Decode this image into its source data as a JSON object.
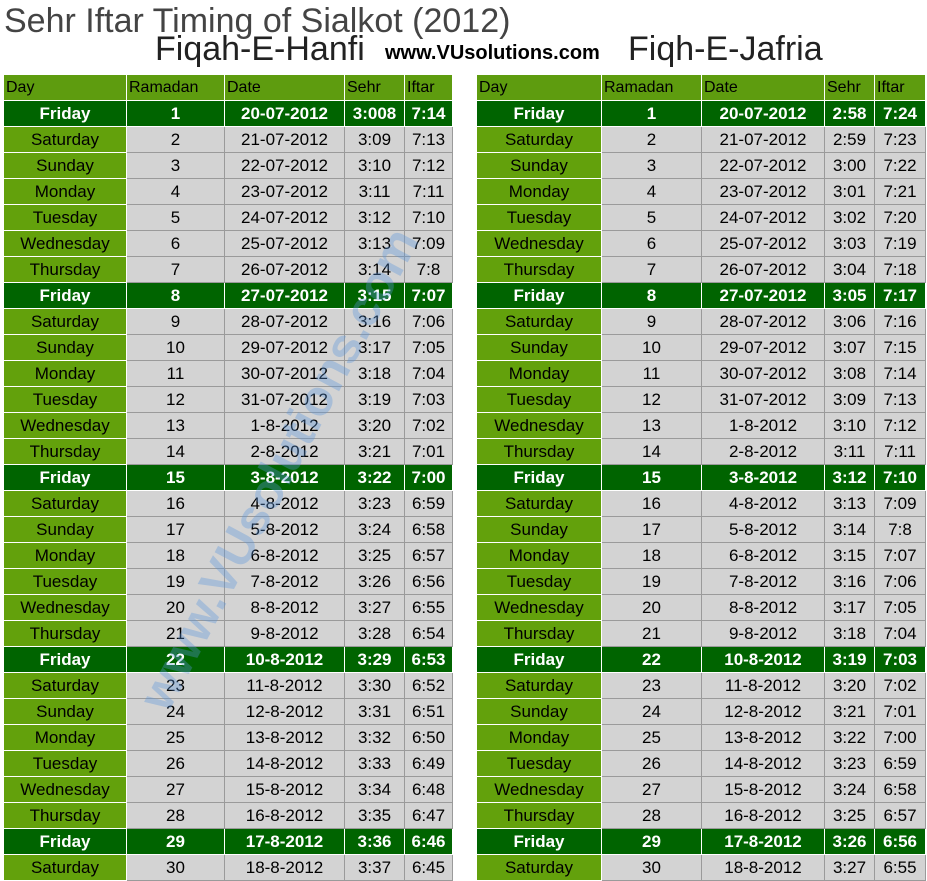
{
  "header": {
    "title": "Sehr Iftar Timing of Sialkot (2012)",
    "left_subtitle": "Fiqah-E-Hanfi",
    "website": "www.VUsolutions.com",
    "right_subtitle": "Fiqh-E-Jafria"
  },
  "watermark": "www.VUsolutions.com",
  "tables": [
    {
      "columns": [
        "Day",
        "Ramadan",
        "Date",
        "Sehr",
        "Iftar"
      ],
      "rows": [
        [
          "Friday",
          1,
          "20-07-2012",
          "3:008",
          "7:14"
        ],
        [
          "Saturday",
          2,
          "21-07-2012",
          "3:09",
          "7:13"
        ],
        [
          "Sunday",
          3,
          "22-07-2012",
          "3:10",
          "7:12"
        ],
        [
          "Monday",
          4,
          "23-07-2012",
          "3:11",
          "7:11"
        ],
        [
          "Tuesday",
          5,
          "24-07-2012",
          "3:12",
          "7:10"
        ],
        [
          "Wednesday",
          6,
          "25-07-2012",
          "3:13",
          "7:09"
        ],
        [
          "Thursday",
          7,
          "26-07-2012",
          "3:14",
          "7:8"
        ],
        [
          "Friday",
          8,
          "27-07-2012",
          "3:15",
          "7:07"
        ],
        [
          "Saturday",
          9,
          "28-07-2012",
          "3:16",
          "7:06"
        ],
        [
          "Sunday",
          10,
          "29-07-2012",
          "3:17",
          "7:05"
        ],
        [
          "Monday",
          11,
          "30-07-2012",
          "3:18",
          "7:04"
        ],
        [
          "Tuesday",
          12,
          "31-07-2012",
          "3:19",
          "7:03"
        ],
        [
          "Wednesday",
          13,
          "1-8-2012",
          "3:20",
          "7:02"
        ],
        [
          "Thursday",
          14,
          "2-8-2012",
          "3:21",
          "7:01"
        ],
        [
          "Friday",
          15,
          "3-8-2012",
          "3:22",
          "7:00"
        ],
        [
          "Saturday",
          16,
          "4-8-2012",
          "3:23",
          "6:59"
        ],
        [
          "Sunday",
          17,
          "5-8-2012",
          "3:24",
          "6:58"
        ],
        [
          "Monday",
          18,
          "6-8-2012",
          "3:25",
          "6:57"
        ],
        [
          "Tuesday",
          19,
          "7-8-2012",
          "3:26",
          "6:56"
        ],
        [
          "Wednesday",
          20,
          "8-8-2012",
          "3:27",
          "6:55"
        ],
        [
          "Thursday",
          21,
          "9-8-2012",
          "3:28",
          "6:54"
        ],
        [
          "Friday",
          22,
          "10-8-2012",
          "3:29",
          "6:53"
        ],
        [
          "Saturday",
          23,
          "11-8-2012",
          "3:30",
          "6:52"
        ],
        [
          "Sunday",
          24,
          "12-8-2012",
          "3:31",
          "6:51"
        ],
        [
          "Monday",
          25,
          "13-8-2012",
          "3:32",
          "6:50"
        ],
        [
          "Tuesday",
          26,
          "14-8-2012",
          "3:33",
          "6:49"
        ],
        [
          "Wednesday",
          27,
          "15-8-2012",
          "3:34",
          "6:48"
        ],
        [
          "Thursday",
          28,
          "16-8-2012",
          "3:35",
          "6:47"
        ],
        [
          "Friday",
          29,
          "17-8-2012",
          "3:36",
          "6:46"
        ],
        [
          "Saturday",
          30,
          "18-8-2012",
          "3:37",
          "6:45"
        ]
      ]
    },
    {
      "columns": [
        "Day",
        "Ramadan",
        "Date",
        "Sehr",
        "Iftar"
      ],
      "rows": [
        [
          "Friday",
          1,
          "20-07-2012",
          "2:58",
          "7:24"
        ],
        [
          "Saturday",
          2,
          "21-07-2012",
          "2:59",
          "7:23"
        ],
        [
          "Sunday",
          3,
          "22-07-2012",
          "3:00",
          "7:22"
        ],
        [
          "Monday",
          4,
          "23-07-2012",
          "3:01",
          "7:21"
        ],
        [
          "Tuesday",
          5,
          "24-07-2012",
          "3:02",
          "7:20"
        ],
        [
          "Wednesday",
          6,
          "25-07-2012",
          "3:03",
          "7:19"
        ],
        [
          "Thursday",
          7,
          "26-07-2012",
          "3:04",
          "7:18"
        ],
        [
          "Friday",
          8,
          "27-07-2012",
          "3:05",
          "7:17"
        ],
        [
          "Saturday",
          9,
          "28-07-2012",
          "3:06",
          "7:16"
        ],
        [
          "Sunday",
          10,
          "29-07-2012",
          "3:07",
          "7:15"
        ],
        [
          "Monday",
          11,
          "30-07-2012",
          "3:08",
          "7:14"
        ],
        [
          "Tuesday",
          12,
          "31-07-2012",
          "3:09",
          "7:13"
        ],
        [
          "Wednesday",
          13,
          "1-8-2012",
          "3:10",
          "7:12"
        ],
        [
          "Thursday",
          14,
          "2-8-2012",
          "3:11",
          "7:11"
        ],
        [
          "Friday",
          15,
          "3-8-2012",
          "3:12",
          "7:10"
        ],
        [
          "Saturday",
          16,
          "4-8-2012",
          "3:13",
          "7:09"
        ],
        [
          "Sunday",
          17,
          "5-8-2012",
          "3:14",
          "7:8"
        ],
        [
          "Monday",
          18,
          "6-8-2012",
          "3:15",
          "7:07"
        ],
        [
          "Tuesday",
          19,
          "7-8-2012",
          "3:16",
          "7:06"
        ],
        [
          "Wednesday",
          20,
          "8-8-2012",
          "3:17",
          "7:05"
        ],
        [
          "Thursday",
          21,
          "9-8-2012",
          "3:18",
          "7:04"
        ],
        [
          "Friday",
          22,
          "10-8-2012",
          "3:19",
          "7:03"
        ],
        [
          "Saturday",
          23,
          "11-8-2012",
          "3:20",
          "7:02"
        ],
        [
          "Sunday",
          24,
          "12-8-2012",
          "3:21",
          "7:01"
        ],
        [
          "Monday",
          25,
          "13-8-2012",
          "3:22",
          "7:00"
        ],
        [
          "Tuesday",
          26,
          "14-8-2012",
          "3:23",
          "6:59"
        ],
        [
          "Wednesday",
          27,
          "15-8-2012",
          "3:24",
          "6:58"
        ],
        [
          "Thursday",
          28,
          "16-8-2012",
          "3:25",
          "6:57"
        ],
        [
          "Friday",
          29,
          "17-8-2012",
          "3:26",
          "6:56"
        ],
        [
          "Saturday",
          30,
          "18-8-2012",
          "3:27",
          "6:55"
        ]
      ]
    }
  ]
}
